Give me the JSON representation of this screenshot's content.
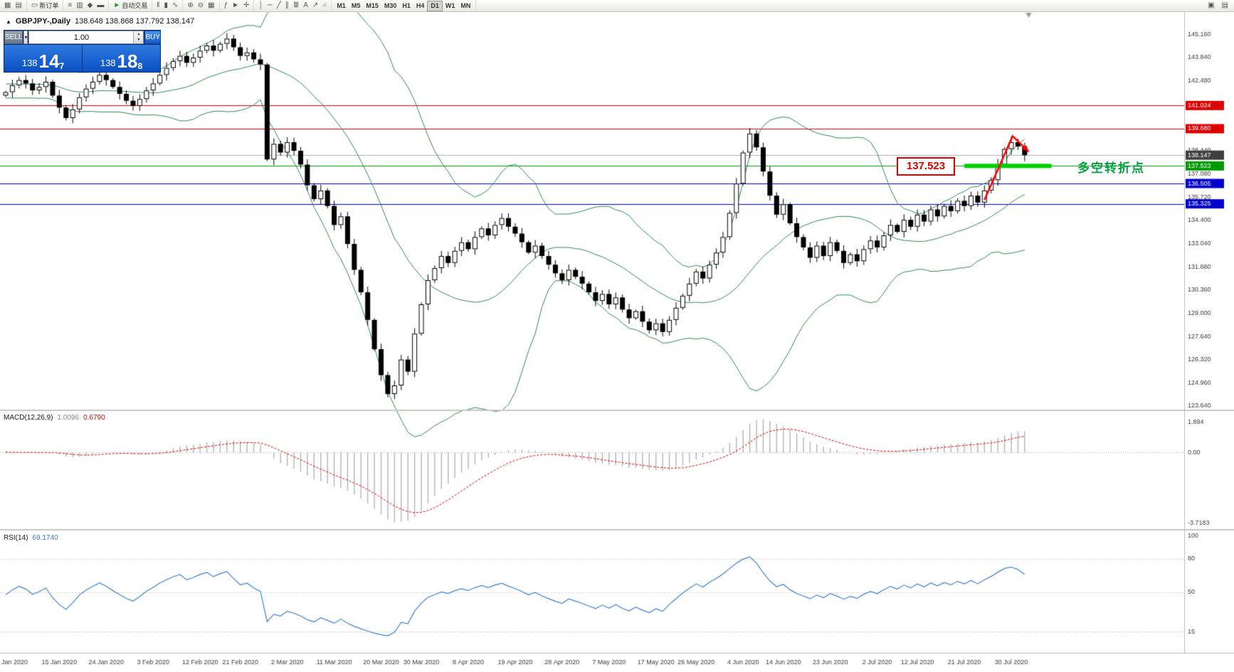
{
  "toolbar": {
    "groups": [
      {
        "items": [
          {
            "name": "new-chart-icon",
            "glyph": "▦"
          },
          {
            "name": "profiles-icon",
            "glyph": "▤"
          }
        ]
      },
      {
        "items": [
          {
            "name": "new-order-button",
            "glyph": "▭",
            "label": "新订单"
          }
        ]
      },
      {
        "items": [
          {
            "name": "market-watch-icon",
            "glyph": "≡"
          },
          {
            "name": "data-window-icon",
            "glyph": "▥"
          },
          {
            "name": "navigator-icon",
            "glyph": "◆"
          },
          {
            "name": "terminal-icon",
            "glyph": "▬"
          }
        ]
      },
      {
        "items": [
          {
            "name": "auto-trading-button",
            "glyph": "►",
            "glyph_color": "#1fa01f",
            "label": "自动交易"
          }
        ]
      },
      {
        "items": [
          {
            "name": "bar-chart-icon",
            "glyph": "‖"
          },
          {
            "name": "candlestick-icon",
            "glyph": "▮"
          },
          {
            "name": "line-chart-icon",
            "glyph": "∿"
          }
        ]
      },
      {
        "items": [
          {
            "name": "zoom-in-icon",
            "glyph": "⊕"
          },
          {
            "name": "zoom-out-icon",
            "glyph": "⊖"
          },
          {
            "name": "tile-windows-icon",
            "glyph": "▦"
          }
        ]
      },
      {
        "items": [
          {
            "name": "indicators-icon",
            "glyph": "ƒ"
          },
          {
            "name": "cursor-icon",
            "glyph": "►"
          },
          {
            "name": "crosshair-icon",
            "glyph": "✛"
          }
        ]
      },
      {
        "items": [
          {
            "name": "vertical-line-icon",
            "glyph": "│"
          },
          {
            "name": "horizontal-line-icon",
            "glyph": "─"
          },
          {
            "name": "trendline-icon",
            "glyph": "╱"
          },
          {
            "name": "channel-icon",
            "glyph": "∥"
          },
          {
            "name": "fibonacci-icon",
            "glyph": "≣"
          },
          {
            "name": "text-icon",
            "glyph": "A"
          },
          {
            "name": "arrow-tool-icon",
            "glyph": "↗"
          },
          {
            "name": "shapes-icon",
            "glyph": "○"
          }
        ]
      }
    ],
    "timeframes": [
      "M1",
      "M5",
      "M15",
      "M30",
      "H1",
      "H4",
      "D1",
      "W1",
      "MN"
    ],
    "active_timeframe": "D1",
    "right_icons": [
      {
        "name": "fullscreen-icon",
        "glyph": "▣"
      },
      {
        "name": "windows-icon",
        "glyph": "▤"
      }
    ]
  },
  "chart": {
    "symbol_title": "GBPJPY-,Daily",
    "ohlc_text": "138.648 138.868 137.792 138.147",
    "trade_panel": {
      "sell_label": "SELL",
      "buy_label": "BUY",
      "lot_size": "1.00",
      "sell_price_big": "138",
      "sell_price_mid": "14",
      "sell_price_sup": "7",
      "buy_price_big": "138",
      "buy_price_mid": "18",
      "buy_price_sup": "8"
    },
    "indicator_labels": {
      "macd_name": "MACD(12,26,9)",
      "macd_value": "1.0096",
      "macd_signal": "0.6790",
      "rsi_name": "RSI(14)",
      "rsi_value": "69.1740"
    },
    "level_box_label": "137.523",
    "note_text": "多空转折点"
  },
  "chart_data": {
    "type": "candlestick",
    "symbol": "GBPJPY-",
    "timeframe": "Daily",
    "current": {
      "open": 138.648,
      "high": 138.868,
      "low": 137.792,
      "close": 138.147
    },
    "ylim": [
      123.4,
      146.48
    ],
    "y_ticks": [
      145.16,
      143.84,
      142.48,
      138.44,
      137.08,
      135.72,
      134.4,
      133.04,
      131.68,
      130.36,
      129.0,
      127.64,
      126.32,
      124.96,
      123.64
    ],
    "levels": [
      {
        "price": 141.024,
        "color": "#dd0000"
      },
      {
        "price": 139.68,
        "color": "#dd0000"
      },
      {
        "price": 137.523,
        "color": "#009a00"
      },
      {
        "price": 136.505,
        "color": "#0000cc"
      },
      {
        "price": 135.325,
        "color": "#0000cc"
      }
    ],
    "bid": {
      "price": 138.147,
      "line_color": "#b0b0b0",
      "label_bg": "#3f3f3f"
    },
    "bollinger": {
      "period": 20,
      "deviations": 2,
      "color": "#2e8b57"
    },
    "macd": {
      "fast": 12,
      "slow": 26,
      "signal_period": 9,
      "hist_color": "#b3b3b3",
      "signal_color": "#e00000",
      "axis_labels": [
        "1.894",
        "0.00",
        "-3.7183"
      ]
    },
    "rsi": {
      "period": 14,
      "color": "#3b82d0",
      "axis_labels": [
        "100",
        "80",
        "50",
        "15"
      ],
      "level_lines": [
        80,
        50,
        15
      ]
    },
    "pre_closes": [
      142.0,
      142.3,
      142.6,
      142.2,
      141.9,
      142.4,
      142.7,
      142.5,
      142.9,
      143.1,
      142.8,
      142.4,
      142.0,
      141.7,
      142.1,
      142.5,
      142.2,
      141.8,
      142.0,
      141.6
    ],
    "closes": [
      141.8,
      142.2,
      142.5,
      142.3,
      141.9,
      142.1,
      142.4,
      141.6,
      140.9,
      140.3,
      140.8,
      141.5,
      142.0,
      142.4,
      142.8,
      142.5,
      142.1,
      141.7,
      141.3,
      141.0,
      141.4,
      141.9,
      142.3,
      142.8,
      143.2,
      143.6,
      143.9,
      143.5,
      143.8,
      144.2,
      144.5,
      144.2,
      144.6,
      144.9,
      144.4,
      143.9,
      144.1,
      143.7,
      143.4,
      137.9,
      138.8,
      138.3,
      138.9,
      138.4,
      137.6,
      136.4,
      135.6,
      136.1,
      135.2,
      134.1,
      134.6,
      133.0,
      131.5,
      130.2,
      128.6,
      126.9,
      125.4,
      124.3,
      124.8,
      126.3,
      125.6,
      127.8,
      129.5,
      130.9,
      131.6,
      132.3,
      131.9,
      132.6,
      133.1,
      132.7,
      133.4,
      133.9,
      133.5,
      134.1,
      134.5,
      134.0,
      133.6,
      133.1,
      132.5,
      132.9,
      132.3,
      131.8,
      131.3,
      130.9,
      131.5,
      131.1,
      130.7,
      130.2,
      129.7,
      130.1,
      129.5,
      129.9,
      129.2,
      128.7,
      129.1,
      128.5,
      128.0,
      128.4,
      127.9,
      128.6,
      129.3,
      130.0,
      130.7,
      131.4,
      131.0,
      131.8,
      132.5,
      133.4,
      134.8,
      136.5,
      138.3,
      139.4,
      138.6,
      137.2,
      135.8,
      134.7,
      135.3,
      134.2,
      133.4,
      132.8,
      132.2,
      132.9,
      132.3,
      133.1,
      132.6,
      131.9,
      132.4,
      132.0,
      132.7,
      133.2,
      132.8,
      133.5,
      134.1,
      133.7,
      134.4,
      134.0,
      134.7,
      134.3,
      135.0,
      134.6,
      135.2,
      134.9,
      135.5,
      135.2,
      135.8,
      135.4,
      136.1,
      136.7,
      137.6,
      138.5,
      138.9,
      138.648,
      138.147
    ],
    "x_labels": [
      {
        "t": "Jan 2020",
        "i": 0
      },
      {
        "t": "15 Jan 2020",
        "i": 8
      },
      {
        "t": "24 Jan 2020",
        "i": 15
      },
      {
        "t": "3 Feb 2020",
        "i": 22
      },
      {
        "t": "12 Feb 2020",
        "i": 29
      },
      {
        "t": "21 Feb 2020",
        "i": 35
      },
      {
        "t": "2 Mar 2020",
        "i": 42
      },
      {
        "t": "11 Mar 2020",
        "i": 49
      },
      {
        "t": "20 Mar 2020",
        "i": 56
      },
      {
        "t": "30 Mar 2020",
        "i": 62
      },
      {
        "t": "8 Apr 2020",
        "i": 69
      },
      {
        "t": "19 Apr 2020",
        "i": 76
      },
      {
        "t": "28 Apr 2020",
        "i": 83
      },
      {
        "t": "7 May 2020",
        "i": 90
      },
      {
        "t": "17 May 2020",
        "i": 97
      },
      {
        "t": "26 May 2020",
        "i": 103
      },
      {
        "t": "4 Jun 2020",
        "i": 110
      },
      {
        "t": "14 Jun 2020",
        "i": 116
      },
      {
        "t": "23 Jun 2020",
        "i": 123
      },
      {
        "t": "2 Jul 2020",
        "i": 130
      },
      {
        "t": "12 Jul 2020",
        "i": 136
      },
      {
        "t": "21 Jul 2020",
        "i": 143
      },
      {
        "t": "30 Jul 2020",
        "i": 150
      }
    ],
    "annotations": {
      "turning_point_line": {
        "price": 137.523,
        "index_from": 143,
        "index_to": 156,
        "color": "#00d300",
        "thickness": 6
      },
      "arrow": {
        "color": "#ff0000",
        "points": [
          [
            146,
            135.55
          ],
          [
            150.2,
            139.25
          ],
          [
            152.6,
            138.35
          ]
        ]
      },
      "shift_marker_index": 152.6
    }
  }
}
